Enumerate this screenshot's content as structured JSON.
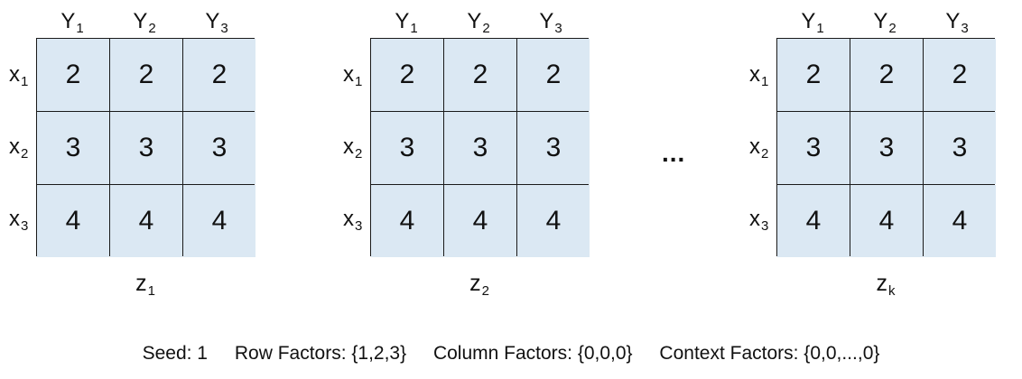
{
  "columns": [
    "Y",
    "Y",
    "Y"
  ],
  "column_subs": [
    "1",
    "2",
    "3"
  ],
  "rows": [
    "x",
    "x",
    "x"
  ],
  "row_subs": [
    "1",
    "2",
    "3"
  ],
  "panels": [
    {
      "label": "z",
      "label_sub": "1",
      "values": [
        [
          "2",
          "2",
          "2"
        ],
        [
          "3",
          "3",
          "3"
        ],
        [
          "4",
          "4",
          "4"
        ]
      ]
    },
    {
      "label": "z",
      "label_sub": "2",
      "values": [
        [
          "2",
          "2",
          "2"
        ],
        [
          "3",
          "3",
          "3"
        ],
        [
          "4",
          "4",
          "4"
        ]
      ]
    },
    {
      "label": "z",
      "label_sub": "k",
      "values": [
        [
          "2",
          "2",
          "2"
        ],
        [
          "3",
          "3",
          "3"
        ],
        [
          "4",
          "4",
          "4"
        ]
      ]
    }
  ],
  "ellipsis": "...",
  "footer": {
    "seed": "Seed: 1",
    "row_factors": "Row Factors: {1,2,3}",
    "column_factors": "Column Factors: {0,0,0}",
    "context_factors": "Context Factors: {0,0,...,0}"
  },
  "colors": {
    "cell_fill": "#dbe8f3",
    "grid_line": "#1a1a1a"
  }
}
